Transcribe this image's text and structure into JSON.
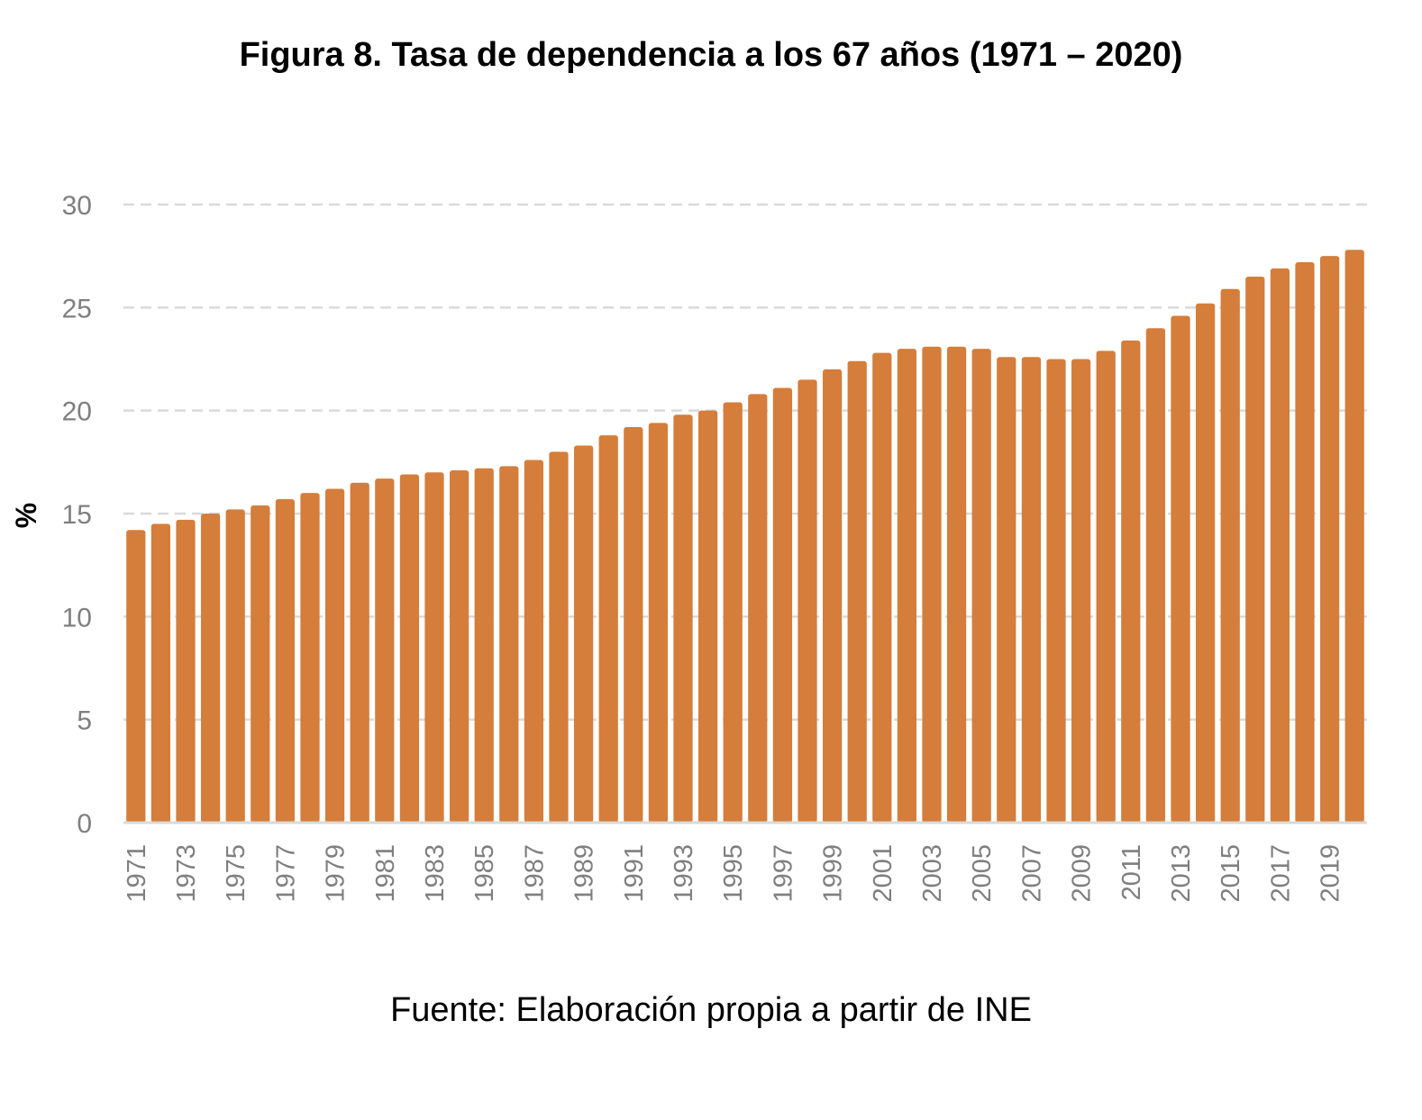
{
  "chart_data": {
    "type": "bar",
    "title": "Figura 8. Tasa de dependencia a los 67 años (1971 – 2020)",
    "ylabel": "%",
    "xlabel": "",
    "ylim": [
      0,
      30
    ],
    "yticks": [
      "0",
      "5",
      "10",
      "15",
      "20",
      "25",
      "30"
    ],
    "ytick_values": [
      0,
      5,
      10,
      15,
      20,
      25,
      30
    ],
    "grid": true,
    "legend": "none",
    "bar_color": "#D57D3B",
    "categories": [
      "1971",
      "1972",
      "1973",
      "1974",
      "1975",
      "1976",
      "1977",
      "1978",
      "1979",
      "1980",
      "1981",
      "1982",
      "1983",
      "1984",
      "1985",
      "1986",
      "1987",
      "1988",
      "1989",
      "1990",
      "1991",
      "1992",
      "1993",
      "1994",
      "1995",
      "1996",
      "1997",
      "1998",
      "1999",
      "2000",
      "2001",
      "2002",
      "2003",
      "2004",
      "2005",
      "2006",
      "2007",
      "2008",
      "2009",
      "2010",
      "2011",
      "2012",
      "2013",
      "2014",
      "2015",
      "2016",
      "2017",
      "2018",
      "2019",
      "2020"
    ],
    "xtick_labels_shown": [
      "1971",
      "1973",
      "1975",
      "1977",
      "1979",
      "1981",
      "1983",
      "1985",
      "1987",
      "1989",
      "1991",
      "1993",
      "1995",
      "1997",
      "1999",
      "2001",
      "2003",
      "2005",
      "2007",
      "2009",
      "2011",
      "2013",
      "2015",
      "2017",
      "2019"
    ],
    "values": [
      14.2,
      14.5,
      14.7,
      15.0,
      15.2,
      15.4,
      15.7,
      16.0,
      16.2,
      16.5,
      16.7,
      16.9,
      17.0,
      17.1,
      17.2,
      17.3,
      17.6,
      18.0,
      18.3,
      18.8,
      19.2,
      19.4,
      19.8,
      20.0,
      20.4,
      20.8,
      21.1,
      21.5,
      22.0,
      22.4,
      22.8,
      23.0,
      23.1,
      23.1,
      23.0,
      22.6,
      22.6,
      22.5,
      22.5,
      22.9,
      23.4,
      24.0,
      24.6,
      25.2,
      25.9,
      26.5,
      26.9,
      27.2,
      27.5,
      27.8
    ]
  },
  "source": "Fuente: Elaboración propia a partir de INE"
}
